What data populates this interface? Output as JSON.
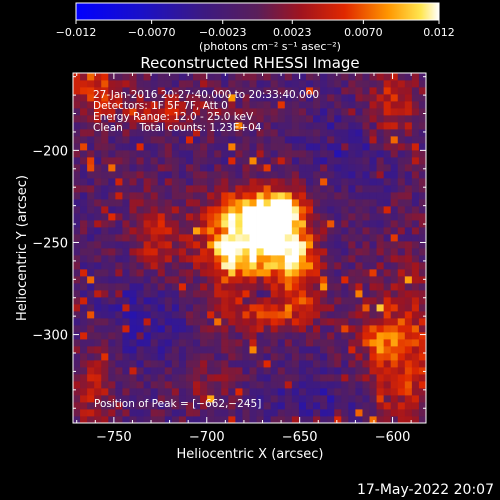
{
  "chart_data": {
    "type": "heatmap",
    "title": "Reconstructed RHESSI Image",
    "xlabel": "Heliocentric X (arcsec)",
    "ylabel": "Heliocentric Y (arcsec)",
    "xlim": [
      -772,
      -582
    ],
    "ylim": [
      -348,
      -158
    ],
    "x_ticks": [
      -750,
      -700,
      -650,
      -600
    ],
    "y_ticks": [
      -200,
      -250,
      -300
    ],
    "x_tick_labels": [
      "−750",
      "−700",
      "−650",
      "−600"
    ],
    "y_tick_labels": [
      "−200",
      "−250",
      "−300"
    ],
    "colorbar": {
      "range": [
        -0.012,
        0.012
      ],
      "ticks": [
        -0.012,
        -0.007,
        -0.0023,
        0.0023,
        0.007,
        0.012
      ],
      "tick_labels": [
        "−0.012",
        "−0.0070",
        "−0.0023",
        "0.0023",
        "0.0070",
        "0.012"
      ],
      "unit_label": "(photons cm⁻² s⁻¹ asec⁻²)"
    },
    "annotations": [
      "27-Jan-2016 20:27:40.000 to 20:33:40.000",
      "Detectors: 1F 5F 7F, Att 0",
      "Energy Range: 12.0 - 25.0 keV",
      "Clean     Total counts: 1.23E+04"
    ],
    "peak_label": "Position of Peak = [−662,−245]",
    "peak": [
      -662,
      -245
    ]
  },
  "footer": {
    "timestamp": "17-May-2022 20:07"
  }
}
